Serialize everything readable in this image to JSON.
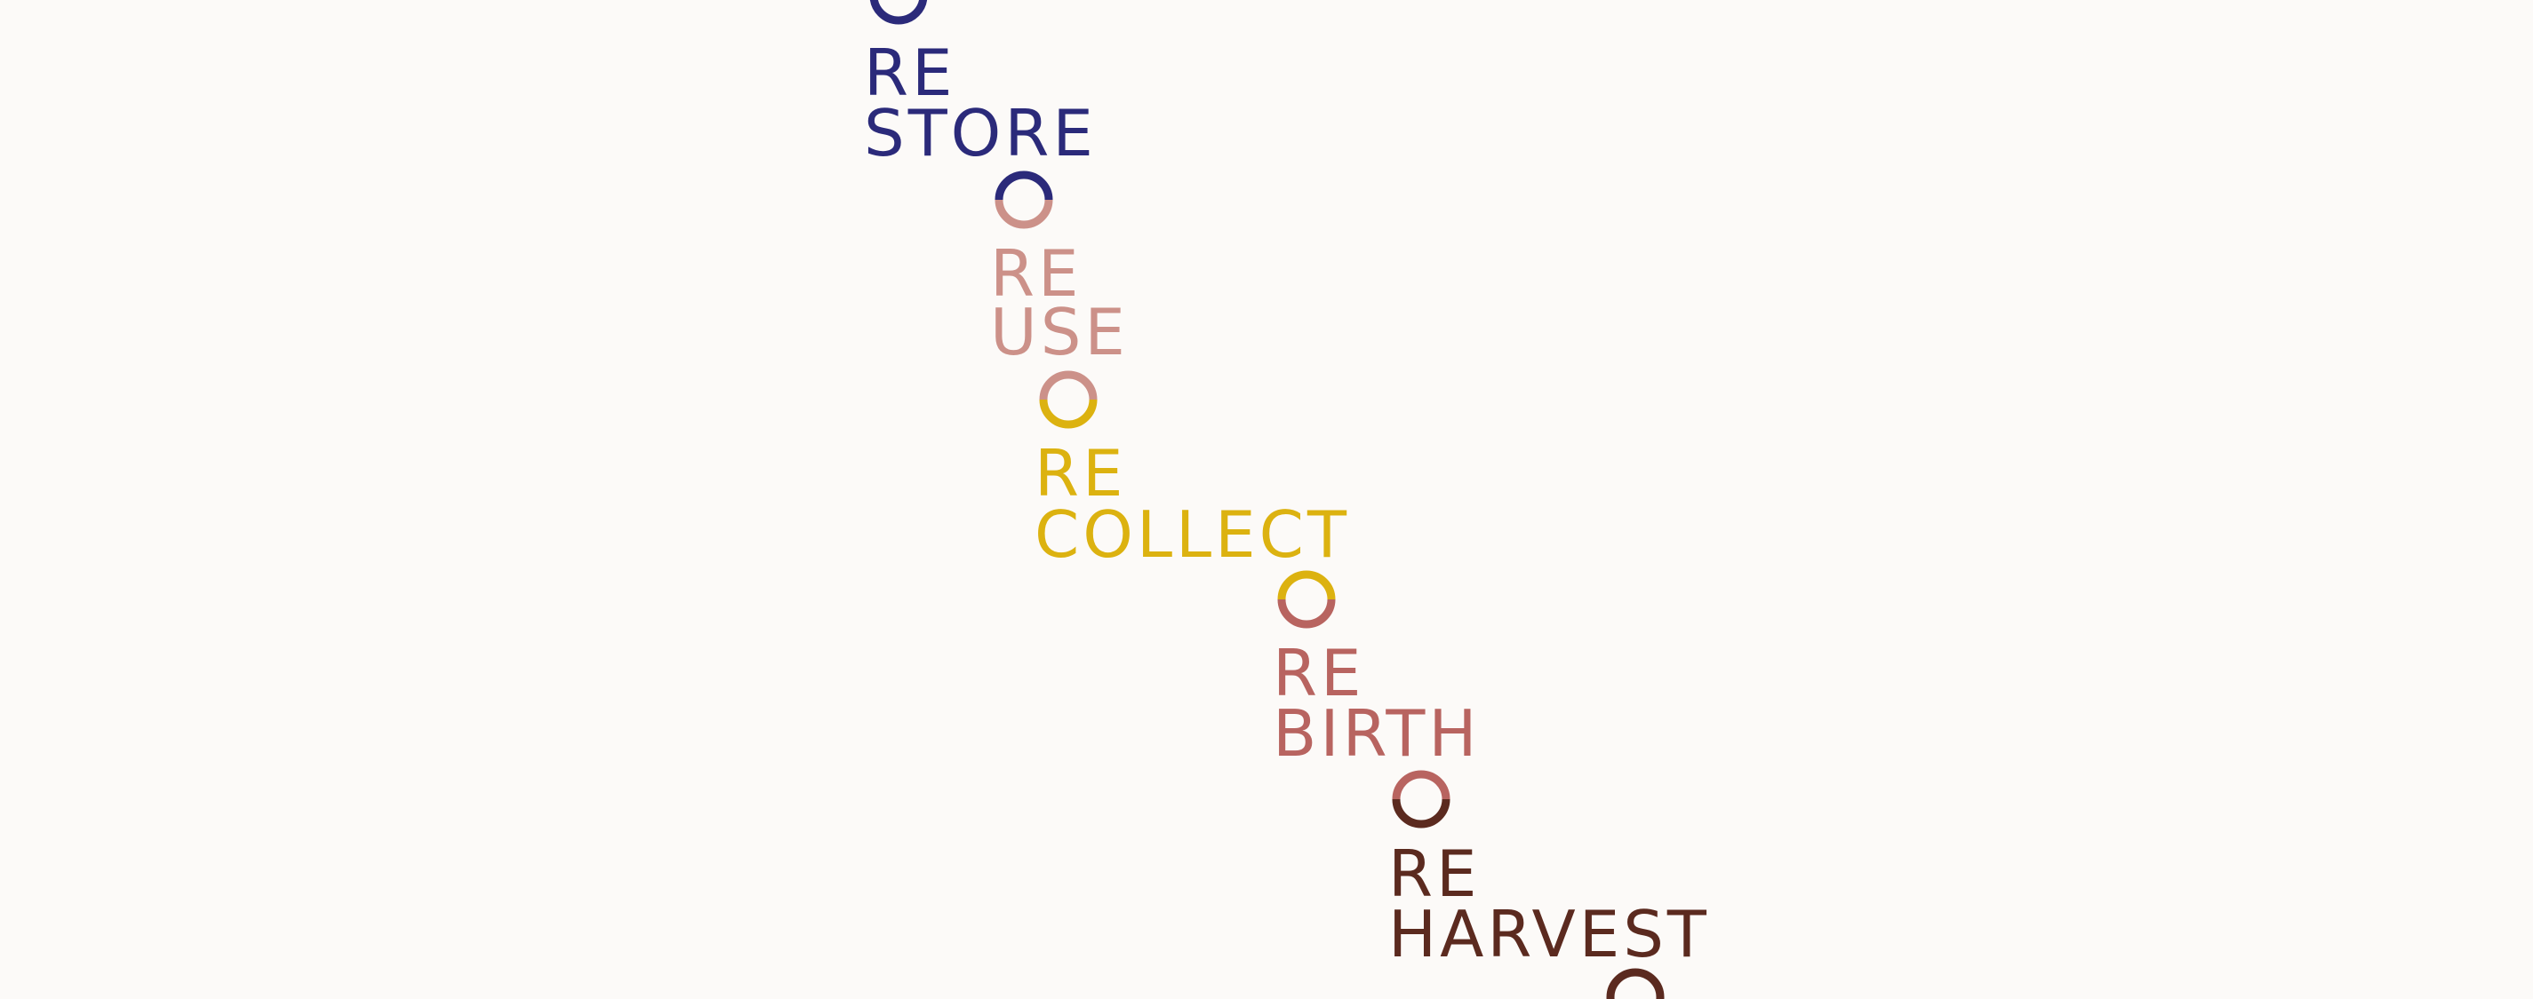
{
  "colors": {
    "background": "#fcfaf8",
    "navy": "#2b2a7a",
    "pink": "#cc9189",
    "mustard": "#dcb210",
    "rose": "#b86460",
    "brown": "#5b2a1f"
  },
  "steps": [
    {
      "prefix": "RE",
      "word": "STORE",
      "color": "navy"
    },
    {
      "prefix": "RE",
      "word": "USE",
      "color": "pink"
    },
    {
      "prefix": "RE",
      "word": "COLLECT",
      "color": "mustard"
    },
    {
      "prefix": "RE",
      "word": "BIRTH",
      "color": "rose"
    },
    {
      "prefix": "RE",
      "word": "HARVEST",
      "color": "brown"
    }
  ],
  "rings": [
    {
      "name": "ring-top",
      "top_color": "navy",
      "bottom_color": "navy"
    },
    {
      "name": "ring-store-use",
      "top_color": "navy",
      "bottom_color": "pink"
    },
    {
      "name": "ring-use-collect",
      "top_color": "pink",
      "bottom_color": "mustard"
    },
    {
      "name": "ring-collect-birth",
      "top_color": "mustard",
      "bottom_color": "rose"
    },
    {
      "name": "ring-birth-harvest",
      "top_color": "rose",
      "bottom_color": "brown"
    },
    {
      "name": "ring-bottom",
      "top_color": "brown",
      "bottom_color": "brown"
    }
  ]
}
